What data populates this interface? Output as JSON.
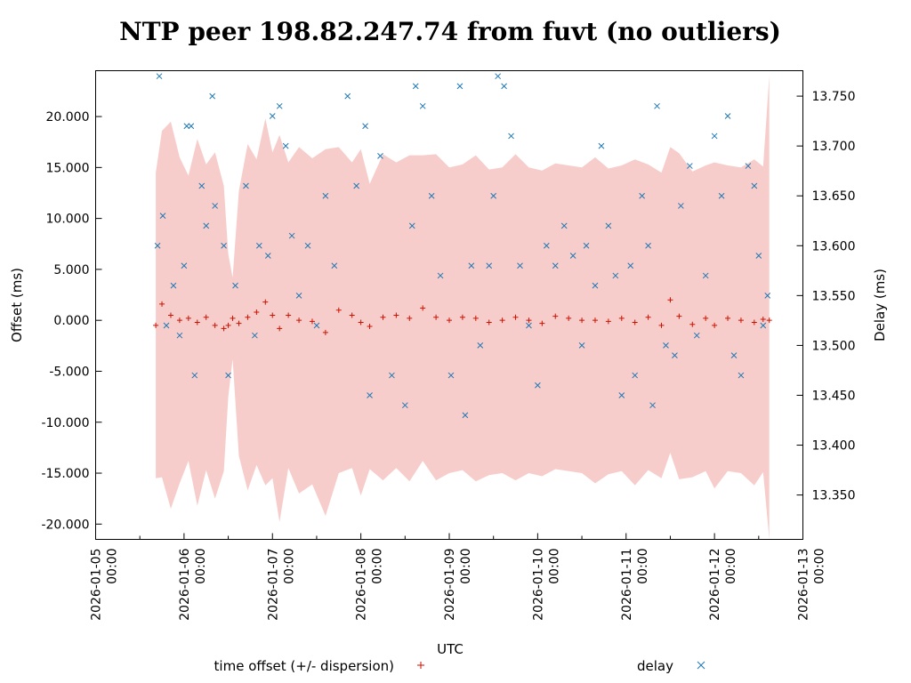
{
  "chart_data": {
    "type": "scatter",
    "title": "NTP peer 198.82.247.74 from fuvt (no outliers)",
    "xlabel": "UTC",
    "ylabel_left": "Offset (ms)",
    "ylabel_right": "Delay (ms)",
    "xlim_days": [
      0,
      8
    ],
    "x_ticks": [
      {
        "day": 0,
        "label_date": "2026-01-05",
        "label_time": "00:00"
      },
      {
        "day": 1,
        "label_date": "2026-01-06",
        "label_time": "00:00"
      },
      {
        "day": 2,
        "label_date": "2026-01-07",
        "label_time": "00:00"
      },
      {
        "day": 3,
        "label_date": "2026-01-08",
        "label_time": "00:00"
      },
      {
        "day": 4,
        "label_date": "2026-01-09",
        "label_time": "00:00"
      },
      {
        "day": 5,
        "label_date": "2026-01-10",
        "label_time": "00:00"
      },
      {
        "day": 6,
        "label_date": "2026-01-11",
        "label_time": "00:00"
      },
      {
        "day": 7,
        "label_date": "2026-01-12",
        "label_time": "00:00"
      },
      {
        "day": 8,
        "label_date": "2026-01-13",
        "label_time": "00:00"
      }
    ],
    "ylim_left": [
      -21.5,
      24.5
    ],
    "y_ticks_left": [
      "20.000",
      "15.000",
      "10.000",
      "5.000",
      "0.000",
      "-5.000",
      "-10.000",
      "-15.000",
      "-20.000"
    ],
    "y_tick_values_left": [
      20,
      15,
      10,
      5,
      0,
      -5,
      -10,
      -15,
      -20
    ],
    "ylim_right": [
      13.3055,
      13.7755
    ],
    "y_ticks_right": [
      "13.750",
      "13.700",
      "13.650",
      "13.600",
      "13.550",
      "13.500",
      "13.450",
      "13.400",
      "13.350"
    ],
    "y_tick_values_right": [
      13.75,
      13.7,
      13.65,
      13.6,
      13.55,
      13.5,
      13.45,
      13.4,
      13.35
    ],
    "colors": {
      "offset": "#cc1100",
      "delay": "#1f77b4",
      "dispersion": "#f7cdcb"
    },
    "legend": {
      "offset_label": "time offset (+/- dispersion)",
      "delay_label": "delay",
      "placement": "bottom"
    },
    "series_time_offset": [
      {
        "day": 0.68,
        "offset": -0.5,
        "dispersion": 15
      },
      {
        "day": 0.75,
        "offset": 1.6,
        "dispersion": 17
      },
      {
        "day": 0.85,
        "offset": 0.5,
        "dispersion": 19
      },
      {
        "day": 0.95,
        "offset": 0.0,
        "dispersion": 16
      },
      {
        "day": 1.05,
        "offset": 0.2,
        "dispersion": 14
      },
      {
        "day": 1.15,
        "offset": -0.2,
        "dispersion": 18
      },
      {
        "day": 1.25,
        "offset": 0.3,
        "dispersion": 15
      },
      {
        "day": 1.35,
        "offset": -0.5,
        "dispersion": 17
      },
      {
        "day": 1.45,
        "offset": -0.8,
        "dispersion": 14
      },
      {
        "day": 1.5,
        "offset": -0.5,
        "dispersion": 7
      },
      {
        "day": 1.55,
        "offset": 0.2,
        "dispersion": 4
      },
      {
        "day": 1.62,
        "offset": -0.3,
        "dispersion": 13
      },
      {
        "day": 1.72,
        "offset": 0.3,
        "dispersion": 17
      },
      {
        "day": 1.82,
        "offset": 0.8,
        "dispersion": 15
      },
      {
        "day": 1.92,
        "offset": 1.8,
        "dispersion": 18
      },
      {
        "day": 2.0,
        "offset": 0.5,
        "dispersion": 16
      },
      {
        "day": 2.08,
        "offset": -0.8,
        "dispersion": 19
      },
      {
        "day": 2.18,
        "offset": 0.5,
        "dispersion": 15
      },
      {
        "day": 2.3,
        "offset": 0.0,
        "dispersion": 17
      },
      {
        "day": 2.45,
        "offset": -0.1,
        "dispersion": 16
      },
      {
        "day": 2.6,
        "offset": -1.2,
        "dispersion": 18
      },
      {
        "day": 2.75,
        "offset": 1.0,
        "dispersion": 16
      },
      {
        "day": 2.9,
        "offset": 0.5,
        "dispersion": 15
      },
      {
        "day": 3.0,
        "offset": -0.2,
        "dispersion": 17
      },
      {
        "day": 3.1,
        "offset": -0.6,
        "dispersion": 14
      },
      {
        "day": 3.25,
        "offset": 0.3,
        "dispersion": 16
      },
      {
        "day": 3.4,
        "offset": 0.5,
        "dispersion": 15
      },
      {
        "day": 3.55,
        "offset": 0.2,
        "dispersion": 16
      },
      {
        "day": 3.7,
        "offset": 1.2,
        "dispersion": 15
      },
      {
        "day": 3.85,
        "offset": 0.3,
        "dispersion": 16
      },
      {
        "day": 4.0,
        "offset": 0.0,
        "dispersion": 15
      },
      {
        "day": 4.15,
        "offset": 0.3,
        "dispersion": 15
      },
      {
        "day": 4.3,
        "offset": 0.2,
        "dispersion": 16
      },
      {
        "day": 4.45,
        "offset": -0.2,
        "dispersion": 15
      },
      {
        "day": 4.6,
        "offset": 0.0,
        "dispersion": 15
      },
      {
        "day": 4.75,
        "offset": 0.3,
        "dispersion": 16
      },
      {
        "day": 4.9,
        "offset": 0.0,
        "dispersion": 15
      },
      {
        "day": 5.05,
        "offset": -0.3,
        "dispersion": 15
      },
      {
        "day": 5.2,
        "offset": 0.4,
        "dispersion": 15
      },
      {
        "day": 5.35,
        "offset": 0.2,
        "dispersion": 15
      },
      {
        "day": 5.5,
        "offset": 0.0,
        "dispersion": 15
      },
      {
        "day": 5.65,
        "offset": 0.0,
        "dispersion": 16
      },
      {
        "day": 5.8,
        "offset": -0.1,
        "dispersion": 15
      },
      {
        "day": 5.95,
        "offset": 0.2,
        "dispersion": 15
      },
      {
        "day": 6.1,
        "offset": -0.2,
        "dispersion": 16
      },
      {
        "day": 6.25,
        "offset": 0.3,
        "dispersion": 15
      },
      {
        "day": 6.4,
        "offset": -0.5,
        "dispersion": 15
      },
      {
        "day": 6.5,
        "offset": 2.0,
        "dispersion": 15
      },
      {
        "day": 6.6,
        "offset": 0.4,
        "dispersion": 16
      },
      {
        "day": 6.75,
        "offset": -0.4,
        "dispersion": 15
      },
      {
        "day": 6.9,
        "offset": 0.2,
        "dispersion": 15
      },
      {
        "day": 7.0,
        "offset": -0.5,
        "dispersion": 16
      },
      {
        "day": 7.15,
        "offset": 0.2,
        "dispersion": 15
      },
      {
        "day": 7.3,
        "offset": 0.0,
        "dispersion": 15
      },
      {
        "day": 7.45,
        "offset": -0.2,
        "dispersion": 16
      },
      {
        "day": 7.55,
        "offset": 0.1,
        "dispersion": 15
      },
      {
        "day": 7.62,
        "offset": 0.0,
        "dispersion": 24
      }
    ],
    "series_delay": [
      {
        "day": 0.72,
        "delay": 13.77
      },
      {
        "day": 0.7,
        "delay": 13.6
      },
      {
        "day": 0.76,
        "delay": 13.63
      },
      {
        "day": 0.8,
        "delay": 13.52
      },
      {
        "day": 0.88,
        "delay": 13.56
      },
      {
        "day": 0.95,
        "delay": 13.51
      },
      {
        "day": 1.0,
        "delay": 13.58
      },
      {
        "day": 1.03,
        "delay": 13.72
      },
      {
        "day": 1.08,
        "delay": 13.72
      },
      {
        "day": 1.12,
        "delay": 13.47
      },
      {
        "day": 1.2,
        "delay": 13.66
      },
      {
        "day": 1.25,
        "delay": 13.62
      },
      {
        "day": 1.32,
        "delay": 13.75
      },
      {
        "day": 1.35,
        "delay": 13.64
      },
      {
        "day": 1.45,
        "delay": 13.6
      },
      {
        "day": 1.5,
        "delay": 13.47
      },
      {
        "day": 1.58,
        "delay": 13.56
      },
      {
        "day": 1.7,
        "delay": 13.66
      },
      {
        "day": 1.8,
        "delay": 13.51
      },
      {
        "day": 1.85,
        "delay": 13.6
      },
      {
        "day": 1.95,
        "delay": 13.59
      },
      {
        "day": 2.0,
        "delay": 13.73
      },
      {
        "day": 2.08,
        "delay": 13.74
      },
      {
        "day": 2.15,
        "delay": 13.7
      },
      {
        "day": 2.22,
        "delay": 13.61
      },
      {
        "day": 2.3,
        "delay": 13.55
      },
      {
        "day": 2.4,
        "delay": 13.6
      },
      {
        "day": 2.5,
        "delay": 13.52
      },
      {
        "day": 2.6,
        "delay": 13.65
      },
      {
        "day": 2.7,
        "delay": 13.58
      },
      {
        "day": 2.85,
        "delay": 13.75
      },
      {
        "day": 2.95,
        "delay": 13.66
      },
      {
        "day": 3.05,
        "delay": 13.72
      },
      {
        "day": 3.1,
        "delay": 13.45
      },
      {
        "day": 3.22,
        "delay": 13.69
      },
      {
        "day": 3.35,
        "delay": 13.47
      },
      {
        "day": 3.5,
        "delay": 13.44
      },
      {
        "day": 3.58,
        "delay": 13.62
      },
      {
        "day": 3.62,
        "delay": 13.76
      },
      {
        "day": 3.7,
        "delay": 13.74
      },
      {
        "day": 3.8,
        "delay": 13.65
      },
      {
        "day": 3.9,
        "delay": 13.57
      },
      {
        "day": 4.02,
        "delay": 13.47
      },
      {
        "day": 4.12,
        "delay": 13.76
      },
      {
        "day": 4.18,
        "delay": 13.43
      },
      {
        "day": 4.25,
        "delay": 13.58
      },
      {
        "day": 4.35,
        "delay": 13.5
      },
      {
        "day": 4.45,
        "delay": 13.58
      },
      {
        "day": 4.5,
        "delay": 13.65
      },
      {
        "day": 4.55,
        "delay": 13.77
      },
      {
        "day": 4.62,
        "delay": 13.76
      },
      {
        "day": 4.7,
        "delay": 13.71
      },
      {
        "day": 4.8,
        "delay": 13.58
      },
      {
        "day": 4.9,
        "delay": 13.52
      },
      {
        "day": 5.0,
        "delay": 13.46
      },
      {
        "day": 5.1,
        "delay": 13.6
      },
      {
        "day": 5.2,
        "delay": 13.58
      },
      {
        "day": 5.3,
        "delay": 13.62
      },
      {
        "day": 5.4,
        "delay": 13.59
      },
      {
        "day": 5.5,
        "delay": 13.5
      },
      {
        "day": 5.55,
        "delay": 13.6
      },
      {
        "day": 5.65,
        "delay": 13.56
      },
      {
        "day": 5.72,
        "delay": 13.7
      },
      {
        "day": 5.8,
        "delay": 13.62
      },
      {
        "day": 5.88,
        "delay": 13.57
      },
      {
        "day": 5.95,
        "delay": 13.45
      },
      {
        "day": 6.05,
        "delay": 13.58
      },
      {
        "day": 6.1,
        "delay": 13.47
      },
      {
        "day": 6.18,
        "delay": 13.65
      },
      {
        "day": 6.25,
        "delay": 13.6
      },
      {
        "day": 6.3,
        "delay": 13.44
      },
      {
        "day": 6.35,
        "delay": 13.74
      },
      {
        "day": 6.45,
        "delay": 13.5
      },
      {
        "day": 6.55,
        "delay": 13.49
      },
      {
        "day": 6.62,
        "delay": 13.64
      },
      {
        "day": 6.72,
        "delay": 13.68
      },
      {
        "day": 6.8,
        "delay": 13.51
      },
      {
        "day": 6.9,
        "delay": 13.57
      },
      {
        "day": 7.0,
        "delay": 13.71
      },
      {
        "day": 7.08,
        "delay": 13.65
      },
      {
        "day": 7.15,
        "delay": 13.73
      },
      {
        "day": 7.22,
        "delay": 13.49
      },
      {
        "day": 7.3,
        "delay": 13.47
      },
      {
        "day": 7.38,
        "delay": 13.68
      },
      {
        "day": 7.45,
        "delay": 13.66
      },
      {
        "day": 7.5,
        "delay": 13.59
      },
      {
        "day": 7.55,
        "delay": 13.52
      },
      {
        "day": 7.6,
        "delay": 13.55
      }
    ]
  }
}
